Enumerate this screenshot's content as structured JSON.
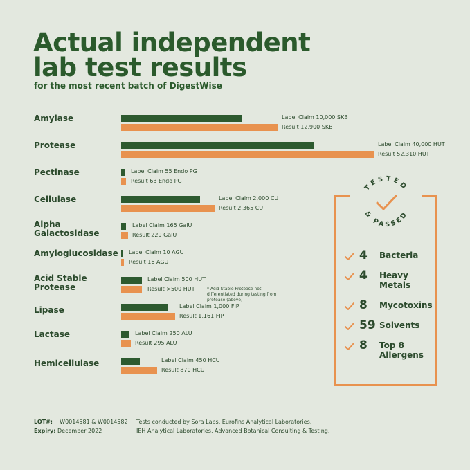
{
  "header": {
    "title_line1": "Actual independent",
    "title_line2": "lab test results",
    "subtitle": "for the most recent batch of DigestWise"
  },
  "chart_data": {
    "type": "bar",
    "orientation": "horizontal",
    "series": [
      {
        "name": "Label Claim",
        "color": "#2d5a2f"
      },
      {
        "name": "Result",
        "color": "#e8924f"
      }
    ],
    "rows": [
      {
        "enzyme": "Amylase",
        "claim": 10000,
        "result": 12900,
        "unit": "SKB",
        "claim_label": "Label Claim 10,000 SKB",
        "result_label": "Result 12,900 SKB"
      },
      {
        "enzyme": "Protease",
        "claim": 40000,
        "result": 52310,
        "unit": "HUT",
        "claim_label": "Label Claim 40,000 HUT",
        "result_label": "Result 52,310 HUT"
      },
      {
        "enzyme": "Pectinase",
        "claim": 55,
        "result": 63,
        "unit": "Endo PG",
        "claim_label": "Label Claim 55 Endo PG",
        "result_label": "Result 63 Endo PG"
      },
      {
        "enzyme": "Cellulase",
        "claim": 2000,
        "result": 2365,
        "unit": "CU",
        "claim_label": "Label Claim 2,000 CU",
        "result_label": "Result 2,365 CU"
      },
      {
        "enzyme": "Alpha Galactosidase",
        "claim": 165,
        "result": 229,
        "unit": "GalU",
        "claim_label": "Label Claim 165 GalU",
        "result_label": "Result 229 GalU"
      },
      {
        "enzyme": "Amyloglucosidase",
        "claim": 10,
        "result": 16,
        "unit": "AGU",
        "claim_label": "Label Claim 10 AGU",
        "result_label": "Result 16 AGU"
      },
      {
        "enzyme": "Acid Stable Protease",
        "claim": 500,
        "result": 500,
        "unit": "HUT",
        "claim_label": "Label Claim 500 HUT",
        "result_label": "Result >500 HUT",
        "note": "* Acid Stable Protease not differentiated during testing from protease (above)"
      },
      {
        "enzyme": "Lipase",
        "claim": 1000,
        "result": 1161,
        "unit": "FIP",
        "claim_label": "Label Claim 1,000 FIP",
        "result_label": "Result 1,161 FIP"
      },
      {
        "enzyme": "Lactase",
        "claim": 250,
        "result": 295,
        "unit": "ALU",
        "claim_label": "Label Claim 250 ALU",
        "result_label": "Result 295 ALU"
      },
      {
        "enzyme": "Hemicellulase",
        "claim": 450,
        "result": 870,
        "unit": "HCU",
        "claim_label": "Label Claim 450 HCU",
        "result_label": "Result 870 HCU"
      }
    ]
  },
  "badge": {
    "seal_top": "TESTED",
    "seal_bottom": "& PASSED",
    "tests": [
      {
        "count": "4",
        "name": "Bacteria"
      },
      {
        "count": "4",
        "name": "Heavy Metals"
      },
      {
        "count": "8",
        "name": "Mycotoxins"
      },
      {
        "count": "59",
        "name": "Solvents"
      },
      {
        "count": "8",
        "name": "Top 8 Allergens"
      }
    ],
    "accent_color": "#e8924f"
  },
  "footer": {
    "lot_label": "LOT#:",
    "lot_value": "W0014581 & W0014582",
    "expiry_label": "Expiry:",
    "expiry_value": "December 2022",
    "labs_line1": "Tests conducted by Sora Labs, Eurofins Analytical Laboratories,",
    "labs_line2": "IEH Analytical Laboratories, Advanced Botanical Consulting & Testing."
  }
}
